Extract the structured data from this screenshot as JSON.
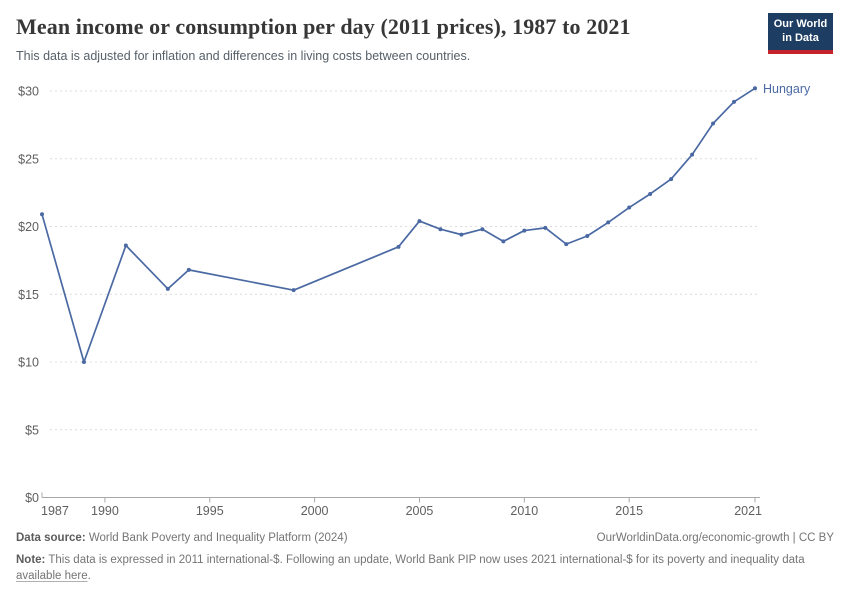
{
  "header": {
    "title": "Mean income or consumption per day (2011 prices), 1987 to 2021",
    "subtitle": "This data is adjusted for inflation and differences in living costs between countries."
  },
  "logo": {
    "line1": "Our World",
    "line2": "in Data"
  },
  "chart_data": {
    "type": "line",
    "title": "Mean income or consumption per day (2011 prices), 1987 to 2021",
    "entity_label": "Hungary",
    "x_range": [
      1987,
      2021
    ],
    "ylim": [
      0,
      30
    ],
    "grid": true,
    "legend_position": "end-of-line",
    "x_tick_labels": [
      "1987",
      "1990",
      "1995",
      "2000",
      "2005",
      "2010",
      "2015",
      "2021"
    ],
    "x_tick_values": [
      1987,
      1990,
      1995,
      2000,
      2005,
      2010,
      2015,
      2021
    ],
    "y_tick_labels": [
      "$0",
      "$5",
      "$10",
      "$15",
      "$20",
      "$25",
      "$30"
    ],
    "y_tick_values": [
      0,
      5,
      10,
      15,
      20,
      25,
      30
    ],
    "series": [
      {
        "name": "Hungary",
        "color": "#4a69a3",
        "x": [
          1987,
          1989,
          1991,
          1993,
          1994,
          1999,
          2004,
          2005,
          2006,
          2007,
          2008,
          2009,
          2010,
          2011,
          2012,
          2013,
          2014,
          2015,
          2016,
          2017,
          2018,
          2019,
          2020,
          2021
        ],
        "values": [
          20.9,
          10.0,
          18.6,
          15.4,
          16.8,
          15.3,
          18.5,
          20.4,
          19.8,
          19.4,
          19.8,
          18.9,
          19.7,
          19.9,
          18.7,
          19.3,
          20.3,
          21.4,
          22.4,
          23.5,
          25.3,
          27.6,
          29.2,
          30.2
        ]
      }
    ]
  },
  "footer": {
    "source_label": "Data source:",
    "source_text": " World Bank Poverty and Inequality Platform (2024)",
    "attribution": "OurWorldinData.org/economic-growth | CC BY",
    "note_label": "Note:",
    "note_before_link": " This data is expressed in 2011 international-$. Following an update, World Bank PIP now uses 2021 international-$ for its poverty and inequality data ",
    "note_link": "available here",
    "note_after_link": "."
  },
  "colors": {
    "line": "#4a69a3",
    "gridline": "#dcdcdc",
    "axis": "#a8a8a8",
    "tick_label": "#606060",
    "title": "#373737",
    "subtitle": "#566069",
    "logo_bg": "#1d3d63",
    "logo_bar": "#c4232c"
  }
}
